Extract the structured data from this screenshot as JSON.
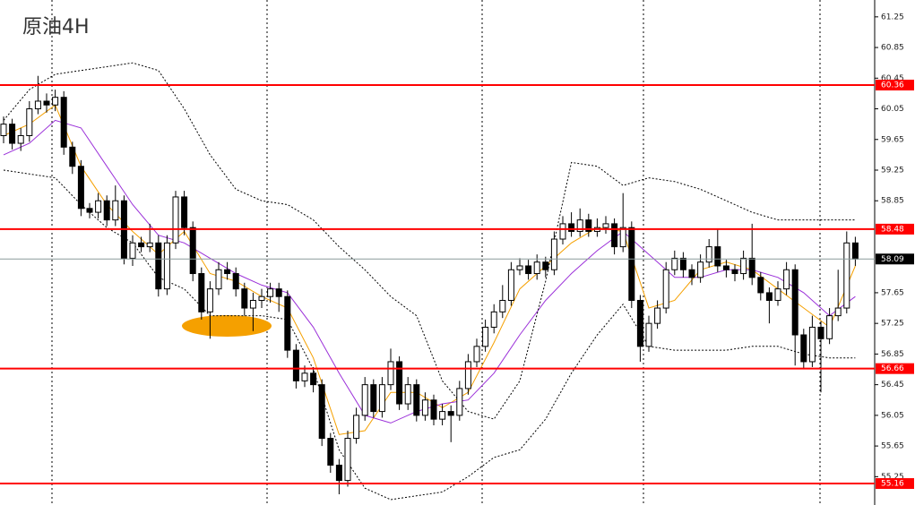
{
  "chart_data": {
    "type": "candlestick",
    "title": "原油4H",
    "open": [
      59.7,
      59.85,
      59.6,
      59.7,
      60.05,
      60.15,
      60.1,
      60.2,
      59.55,
      59.3,
      58.75,
      58.7,
      58.85,
      58.6,
      58.85,
      58.1,
      58.3,
      58.25,
      58.3,
      57.7,
      58.3,
      58.9,
      58.5,
      57.9,
      57.4,
      57.7,
      57.95,
      57.9,
      57.7,
      57.45,
      57.55,
      57.6,
      57.7,
      57.6,
      56.9,
      56.5,
      56.6,
      56.45,
      55.75,
      55.4,
      55.2,
      55.75,
      56.05,
      56.45,
      56.1,
      56.45,
      56.75,
      56.2,
      56.45,
      56.05,
      56.25,
      56.0,
      56.1,
      56.05,
      56.4,
      56.75,
      56.95,
      57.2,
      57.4,
      57.55,
      57.95,
      58.0,
      57.9,
      58.05,
      57.95,
      58.35,
      58.55,
      58.45,
      58.6,
      58.45,
      58.5,
      58.55,
      58.25,
      58.5,
      57.55,
      56.95,
      57.25,
      57.45,
      57.95,
      58.1,
      57.95,
      57.85,
      58.05,
      58.25,
      58.0,
      57.95,
      57.9,
      58.1,
      57.85,
      57.65,
      57.55,
      57.7,
      57.95,
      57.1,
      56.75,
      57.2,
      57.05,
      57.35,
      57.45,
      58.3
    ],
    "high": [
      59.95,
      59.92,
      59.8,
      60.15,
      60.48,
      60.25,
      60.3,
      60.28,
      59.62,
      59.38,
      58.82,
      58.95,
      58.92,
      59.05,
      58.92,
      58.4,
      58.38,
      58.55,
      58.4,
      58.4,
      58.98,
      58.98,
      58.58,
      57.98,
      57.8,
      58.05,
      58.05,
      57.98,
      57.78,
      57.65,
      57.7,
      57.78,
      57.78,
      57.68,
      56.98,
      56.7,
      56.68,
      56.52,
      55.82,
      55.48,
      55.85,
      56.15,
      56.55,
      56.52,
      56.55,
      56.92,
      56.82,
      56.55,
      56.52,
      56.35,
      56.32,
      56.2,
      56.18,
      56.5,
      56.85,
      57.05,
      57.3,
      57.5,
      57.75,
      58.05,
      58.1,
      58.08,
      58.15,
      58.12,
      58.45,
      58.65,
      58.7,
      58.75,
      58.68,
      58.62,
      58.65,
      58.62,
      58.95,
      58.58,
      57.62,
      57.35,
      57.55,
      58.05,
      58.2,
      58.18,
      58.02,
      58.15,
      58.35,
      58.48,
      58.08,
      58.02,
      58.2,
      58.55,
      57.92,
      57.72,
      57.8,
      58.05,
      58.02,
      57.18,
      57.35,
      57.28,
      57.45,
      57.95,
      58.45,
      58.38
    ],
    "low": [
      59.6,
      59.52,
      59.5,
      59.62,
      59.98,
      60.0,
      60.02,
      59.45,
      59.2,
      58.65,
      58.62,
      58.62,
      58.52,
      58.52,
      58.02,
      58.0,
      58.18,
      58.18,
      57.6,
      57.62,
      58.22,
      58.4,
      57.8,
      57.3,
      57.05,
      57.62,
      57.82,
      57.6,
      57.35,
      57.15,
      57.45,
      57.52,
      57.4,
      56.8,
      56.4,
      56.42,
      56.35,
      55.65,
      55.3,
      55.02,
      55.12,
      55.68,
      55.98,
      56.02,
      56.02,
      56.38,
      56.12,
      56.12,
      55.97,
      55.98,
      55.92,
      55.92,
      55.7,
      55.98,
      56.32,
      56.68,
      56.88,
      57.12,
      57.32,
      57.48,
      57.88,
      57.82,
      57.82,
      57.85,
      57.88,
      58.28,
      58.38,
      58.38,
      58.38,
      58.38,
      58.42,
      58.15,
      58.18,
      57.45,
      56.75,
      56.88,
      57.18,
      57.38,
      57.88,
      57.85,
      57.75,
      57.78,
      57.98,
      57.92,
      57.85,
      57.8,
      57.82,
      57.75,
      57.55,
      57.25,
      57.48,
      57.62,
      56.7,
      56.65,
      56.68,
      56.35,
      56.98,
      57.28,
      57.38,
      58.0
    ],
    "close": [
      59.85,
      59.6,
      59.7,
      60.05,
      60.15,
      60.1,
      60.2,
      59.55,
      59.3,
      58.75,
      58.7,
      58.85,
      58.6,
      58.85,
      58.1,
      58.3,
      58.25,
      58.3,
      57.7,
      58.3,
      58.9,
      58.5,
      57.9,
      57.4,
      57.7,
      57.95,
      57.9,
      57.7,
      57.45,
      57.55,
      57.6,
      57.7,
      57.6,
      56.9,
      56.5,
      56.6,
      56.45,
      55.75,
      55.4,
      55.2,
      55.75,
      56.05,
      56.45,
      56.1,
      56.45,
      56.75,
      56.2,
      56.45,
      56.05,
      56.25,
      56.0,
      56.1,
      56.05,
      56.4,
      56.75,
      56.95,
      57.2,
      57.4,
      57.55,
      57.95,
      58.0,
      57.9,
      58.05,
      57.95,
      58.35,
      58.55,
      58.45,
      58.6,
      58.45,
      58.5,
      58.55,
      58.25,
      58.5,
      57.55,
      56.95,
      57.25,
      57.45,
      57.95,
      58.1,
      57.95,
      57.85,
      58.05,
      58.25,
      58.0,
      57.95,
      57.9,
      58.1,
      57.85,
      57.65,
      57.55,
      57.7,
      57.95,
      57.1,
      56.75,
      57.2,
      57.05,
      57.35,
      57.45,
      58.3,
      58.09
    ],
    "line_x": [
      0,
      3,
      6,
      9,
      12,
      15,
      18,
      21,
      24,
      27,
      30,
      33,
      36,
      39,
      42,
      45,
      48,
      51,
      54,
      57,
      60,
      63,
      66,
      69,
      72,
      75,
      78,
      81,
      84,
      87,
      90,
      93,
      96,
      99
    ],
    "lines": [
      {
        "color": "#f5a000",
        "dashed": false,
        "values": [
          59.7,
          59.85,
          60.1,
          59.3,
          58.8,
          58.45,
          58.15,
          58.45,
          57.9,
          57.8,
          57.6,
          57.45,
          56.8,
          55.8,
          55.85,
          56.35,
          56.35,
          56.15,
          56.35,
          57.0,
          57.7,
          58.0,
          58.3,
          58.5,
          58.45,
          57.45,
          57.55,
          57.95,
          58.05,
          57.95,
          57.7,
          57.45,
          57.2,
          58.0
        ]
      },
      {
        "color": "#9b30d9",
        "dashed": false,
        "values": [
          59.45,
          59.6,
          59.9,
          59.8,
          59.3,
          58.8,
          58.4,
          58.3,
          58.1,
          57.9,
          57.75,
          57.65,
          57.2,
          56.6,
          56.05,
          55.95,
          56.1,
          56.2,
          56.25,
          56.6,
          57.1,
          57.55,
          57.9,
          58.2,
          58.45,
          58.15,
          57.85,
          57.85,
          57.95,
          57.95,
          57.85,
          57.65,
          57.35,
          57.6
        ]
      },
      {
        "color": "#000000",
        "dashed": true,
        "values": [
          59.9,
          60.3,
          60.5,
          60.55,
          60.6,
          60.65,
          60.55,
          60.05,
          59.45,
          59.0,
          58.85,
          58.8,
          58.6,
          58.25,
          57.95,
          57.6,
          57.35,
          56.5,
          56.1,
          56.0,
          56.5,
          57.8,
          59.35,
          59.3,
          59.05,
          59.15,
          59.1,
          59.0,
          58.85,
          58.7,
          58.6,
          58.6,
          58.6,
          58.6
        ]
      },
      {
        "color": "#000000",
        "dashed": true,
        "values": [
          59.25,
          59.2,
          59.15,
          58.8,
          58.5,
          58.3,
          57.85,
          57.7,
          57.35,
          57.35,
          57.35,
          57.3,
          56.65,
          55.6,
          55.1,
          54.95,
          55.0,
          55.05,
          55.25,
          55.5,
          55.6,
          56.0,
          56.6,
          57.1,
          57.5,
          56.95,
          56.9,
          56.9,
          56.9,
          56.95,
          56.95,
          56.85,
          56.8,
          56.8
        ]
      }
    ],
    "levels": [
      60.36,
      58.48,
      56.66,
      55.16
    ],
    "level_color": "#ff0000",
    "last_price_color": "#000000",
    "up_color": "#ffffff",
    "down_color": "#000000",
    "ylim": [
      54.88,
      61.47
    ],
    "yticks": [
      {
        "value": 61.25,
        "label": "61.25"
      },
      {
        "value": 60.85,
        "label": "60.85"
      },
      {
        "value": 60.45,
        "label": "60.45"
      },
      {
        "value": 60.05,
        "label": "60.05"
      },
      {
        "value": 59.65,
        "label": "59.65"
      },
      {
        "value": 59.25,
        "label": "59.25"
      },
      {
        "value": 58.85,
        "label": "58.85"
      },
      {
        "value": 57.65,
        "label": "57.65"
      },
      {
        "value": 57.25,
        "label": "57.25"
      },
      {
        "value": 56.85,
        "label": "56.85"
      },
      {
        "value": 56.45,
        "label": "56.45"
      },
      {
        "value": 56.05,
        "label": "56.05"
      },
      {
        "value": 55.65,
        "label": "55.65"
      },
      {
        "value": 55.25,
        "label": "55.25"
      }
    ]
  }
}
